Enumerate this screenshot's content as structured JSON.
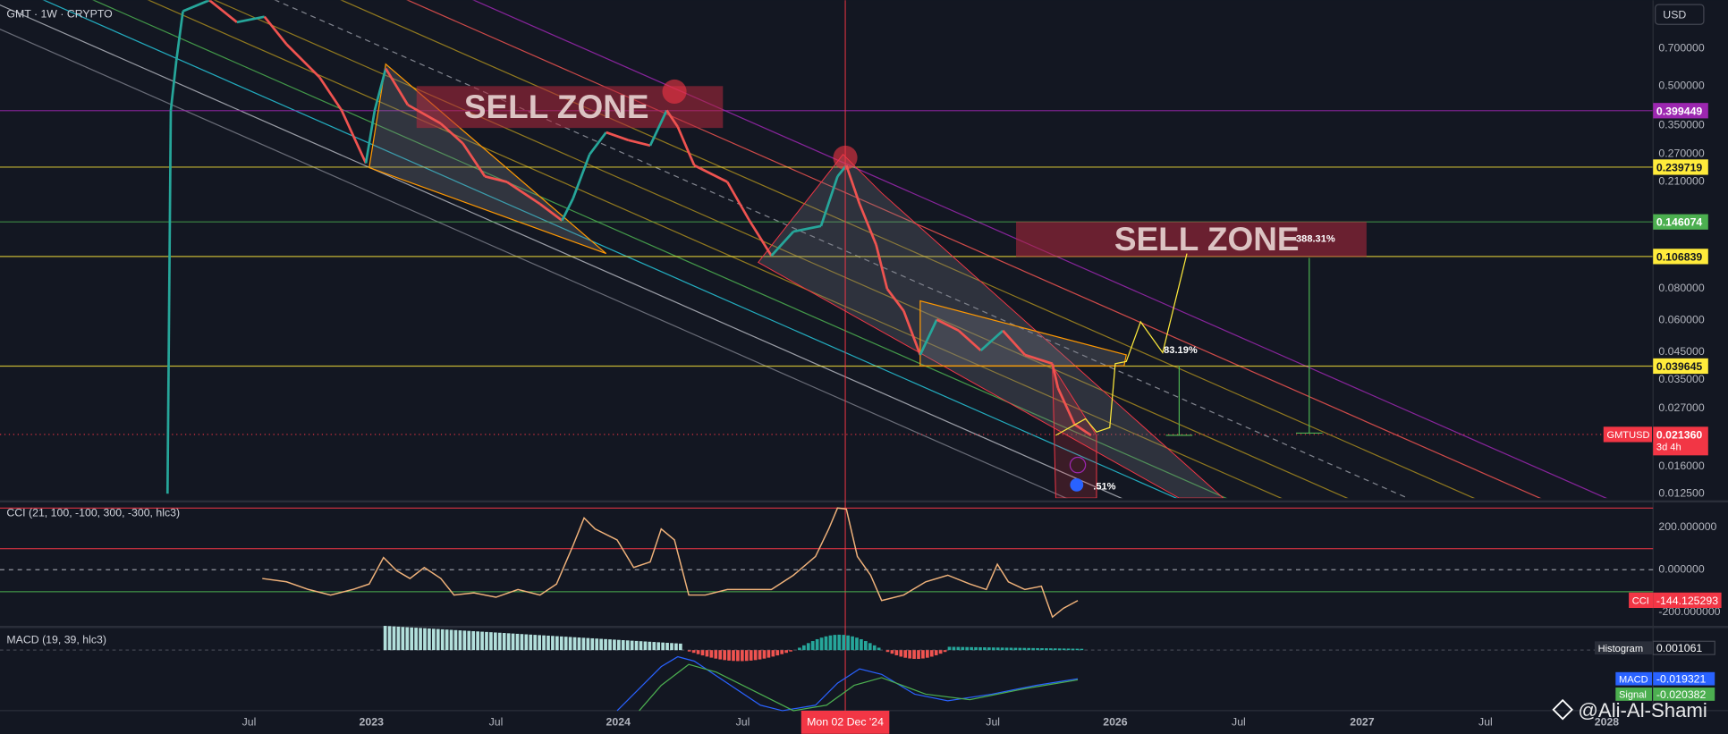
{
  "header": {
    "symbol": "GMT · 1W · CRYPTO",
    "currency": "USD"
  },
  "price_axis": {
    "ticks": [
      {
        "value": 0.7,
        "label": "0.700000"
      },
      {
        "value": 0.5,
        "label": "0.500000"
      },
      {
        "value": 0.35,
        "label": "0.350000"
      },
      {
        "value": 0.27,
        "label": "0.270000"
      },
      {
        "value": 0.21,
        "label": "0.210000"
      },
      {
        "value": 0.08,
        "label": "0.080000"
      },
      {
        "value": 0.06,
        "label": "0.060000"
      },
      {
        "value": 0.045,
        "label": "0.045000"
      },
      {
        "value": 0.035,
        "label": "0.035000"
      },
      {
        "value": 0.027,
        "label": "0.027000"
      },
      {
        "value": 0.016,
        "label": "0.016000"
      },
      {
        "value": 0.0125,
        "label": "0.012500"
      }
    ],
    "levels": [
      {
        "value": 0.399449,
        "color": "#9c27b0"
      },
      {
        "value": 0.239719,
        "color": "#ffeb3b"
      },
      {
        "value": 0.146074,
        "color": "#4caf50"
      },
      {
        "value": 0.106839,
        "color": "#ffeb3b"
      },
      {
        "value": 0.039645,
        "color": "#ffeb3b"
      }
    ],
    "last_price": {
      "name": "GMTUSD",
      "value": 0.02136,
      "label": "0.021360",
      "countdown": "3d 4h",
      "color": "#f23645"
    }
  },
  "annotations": {
    "sell_zones": [
      "SELL ZONE",
      "SELL ZONE"
    ],
    "percent_labels": [
      "388.31%",
      "83.19%",
      ".51%"
    ]
  },
  "cci": {
    "title": "CCI (21, 100, -100, 300, -300, hlc3)",
    "ticks": [
      {
        "value": 200,
        "label": "200.000000"
      },
      {
        "value": 0,
        "label": "0.000000"
      },
      {
        "value": -200,
        "label": "-200.000000"
      }
    ],
    "current": {
      "name": "CCI",
      "value": -144.125293
    }
  },
  "macd": {
    "title": "MACD (19, 39, hlc3)",
    "histogram": {
      "name": "Histogram",
      "value": 0.001061
    },
    "macd": {
      "name": "MACD",
      "value": -0.019321
    },
    "signal": {
      "name": "Signal",
      "value": -0.020382
    }
  },
  "time_axis": {
    "labels": [
      "Jul",
      "2023",
      "Jul",
      "2024",
      "Jul",
      "Mon 02 Dec '24",
      "Jul",
      "2026",
      "Jul",
      "2027",
      "Jul",
      "2028"
    ]
  },
  "watermark": "@Ali-Al-Shami"
}
